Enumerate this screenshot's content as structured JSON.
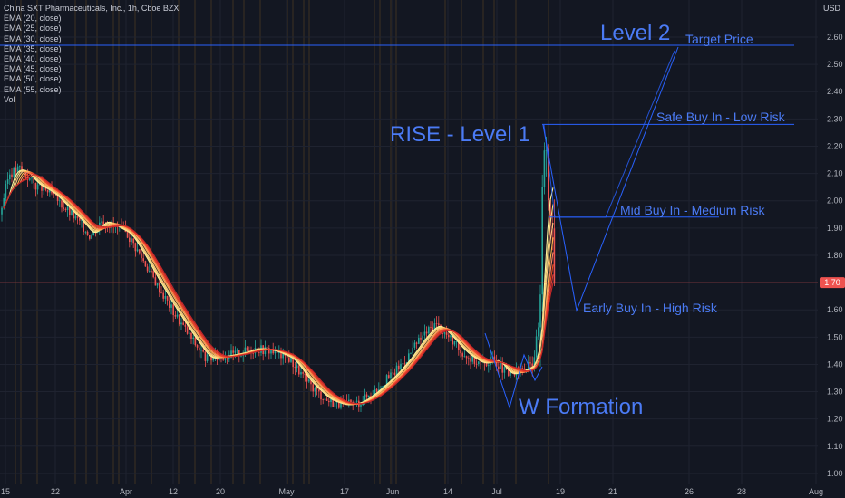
{
  "chart_data": {
    "type": "candlestick",
    "title": "China SXT Pharmaceuticals, Inc., 1h, Cboe BZX",
    "currency": "USD",
    "indicators": [
      "EMA (20, close)",
      "EMA (25, close)",
      "EMA (30, close)",
      "EMA (35, close)",
      "EMA (40, close)",
      "EMA (45, close)",
      "EMA (50, close)",
      "EMA (55, close)",
      "Vol"
    ],
    "y_ticks": [
      "2.60",
      "2.50",
      "2.40",
      "2.30",
      "2.20",
      "2.10",
      "2.00",
      "1.90",
      "1.80",
      "1.70",
      "1.60",
      "1.50",
      "1.40",
      "1.30",
      "1.20",
      "1.10",
      "1.00"
    ],
    "ylim": [
      0.98,
      2.72
    ],
    "x_ticks": [
      "15",
      "22",
      "Apr",
      "12",
      "20",
      "May",
      "17",
      "Jun",
      "14",
      "Jul",
      "19",
      "21",
      "26",
      "28",
      "Aug"
    ],
    "last_price": "1.70",
    "price_path": [
      [
        0,
        1.95
      ],
      [
        10,
        2.1
      ],
      [
        22,
        2.12
      ],
      [
        38,
        2.06
      ],
      [
        55,
        2.03
      ],
      [
        70,
        1.98
      ],
      [
        88,
        1.92
      ],
      [
        100,
        1.87
      ],
      [
        112,
        1.93
      ],
      [
        128,
        1.9
      ],
      [
        140,
        1.88
      ],
      [
        155,
        1.8
      ],
      [
        172,
        1.7
      ],
      [
        190,
        1.6
      ],
      [
        210,
        1.5
      ],
      [
        228,
        1.42
      ],
      [
        245,
        1.43
      ],
      [
        262,
        1.44
      ],
      [
        282,
        1.46
      ],
      [
        300,
        1.45
      ],
      [
        320,
        1.42
      ],
      [
        340,
        1.33
      ],
      [
        360,
        1.27
      ],
      [
        378,
        1.25
      ],
      [
        395,
        1.26
      ],
      [
        412,
        1.3
      ],
      [
        432,
        1.36
      ],
      [
        448,
        1.42
      ],
      [
        465,
        1.5
      ],
      [
        480,
        1.55
      ],
      [
        495,
        1.5
      ],
      [
        508,
        1.45
      ],
      [
        520,
        1.42
      ],
      [
        532,
        1.4
      ],
      [
        545,
        1.42
      ],
      [
        560,
        1.36
      ],
      [
        575,
        1.38
      ],
      [
        588,
        1.4
      ],
      [
        596,
        1.6
      ],
      [
        600,
        2.26
      ],
      [
        604,
        2.05
      ],
      [
        608,
        1.95
      ],
      [
        612,
        1.72
      ]
    ],
    "annotations": {
      "level2": "Level 2",
      "target_price": "Target Price",
      "rise_level1": "RISE - Level 1",
      "safe_buy": "Safe Buy In - Low Risk",
      "mid_buy": "Mid Buy In - Medium Risk",
      "early_buy": "Early Buy In - High Risk",
      "w_formation": "W Formation"
    },
    "levels": {
      "target": 2.57,
      "safe": 2.28,
      "mid": 1.94,
      "current": 1.7
    },
    "colors": {
      "background": "#131722",
      "grid": "#1f2330",
      "up": "#26a69a",
      "down": "#ef5350",
      "annotation": "#2962ff",
      "annotation_text": "#4b7bf5",
      "current_line": "#ef5350",
      "ema_fast": "#fff59d",
      "ema_slow": "#e53935"
    }
  }
}
